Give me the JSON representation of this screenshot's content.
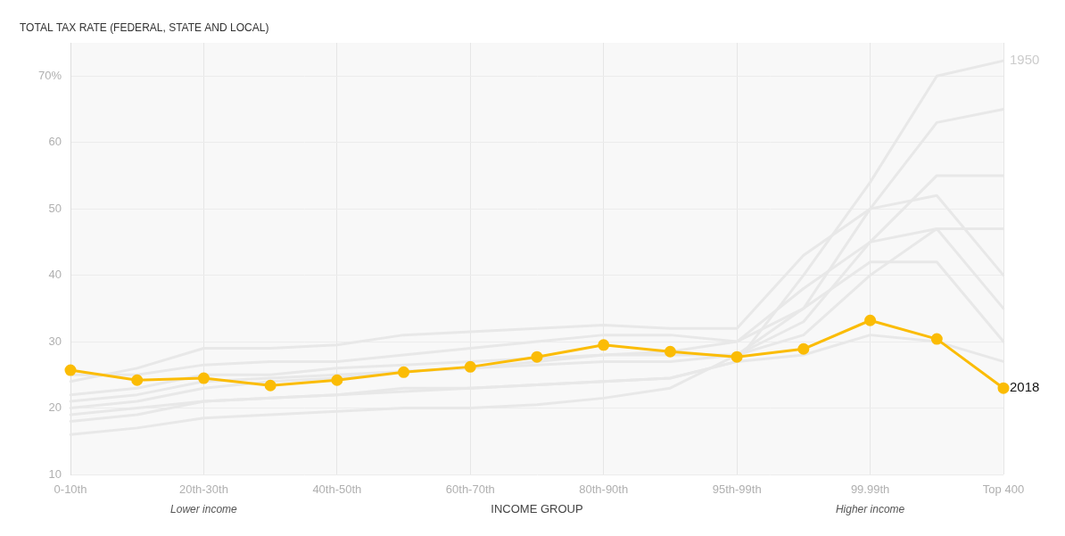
{
  "chart_data": {
    "type": "line",
    "title": "TOTAL TAX RATE (FEDERAL, STATE AND LOCAL)",
    "x_label": "INCOME GROUP",
    "annotations": [
      {
        "text": "Lower income",
        "category": "20th-30th"
      },
      {
        "text": "Higher income",
        "category": "99.99th"
      }
    ],
    "categories": [
      "0-10th",
      null,
      "20th-30th",
      null,
      "40th-50th",
      null,
      "60th-70th",
      null,
      "80th-90th",
      null,
      "95th-99th",
      null,
      "99.99th",
      null,
      "Top 400"
    ],
    "series": [
      {
        "color": "#e8e8e8",
        "values": [
          22,
          23,
          25,
          25,
          26,
          26.5,
          27,
          27.5,
          28,
          28,
          28,
          35,
          50,
          63,
          65
        ]
      },
      {
        "color": "#e8e8e8",
        "values": [
          20,
          21,
          23,
          24,
          24.5,
          25.5,
          26,
          26.5,
          27,
          27,
          28,
          33,
          45,
          55,
          55
        ]
      },
      {
        "color": "#e8e8e8",
        "values": [
          16,
          17,
          18.5,
          19,
          19.5,
          20,
          20,
          20.5,
          21.5,
          23,
          28,
          31,
          40,
          47,
          47
        ]
      },
      {
        "color": "#e8e8e8",
        "values": [
          24,
          26,
          29,
          29,
          29.5,
          31,
          31.5,
          32,
          32.5,
          32,
          32,
          43,
          50,
          52,
          40
        ]
      },
      {
        "color": "#e8e8e8",
        "values": [
          25,
          25,
          26.5,
          27,
          27,
          28,
          29,
          30,
          31,
          31,
          30,
          35,
          42,
          42,
          30
        ]
      },
      {
        "color": "#e8e8e8",
        "values": [
          19,
          20,
          21,
          21.5,
          22,
          23,
          23,
          23.5,
          24,
          24.5,
          27,
          28,
          31,
          30,
          27
        ]
      },
      {
        "color": "#e8e8e8",
        "values": [
          21,
          22,
          24,
          24.5,
          25,
          25.5,
          26,
          27,
          28,
          28.5,
          30,
          38,
          45,
          47,
          35
        ]
      },
      {
        "name": "1950",
        "color": "#e8e8e8",
        "values": [
          18,
          19,
          21,
          21.5,
          22,
          22.5,
          23,
          23.5,
          24,
          24.5,
          27,
          40,
          54,
          70,
          72.3
        ]
      },
      {
        "name": "2018",
        "color": "#fbbc05",
        "marker": "circle",
        "values": [
          25.7,
          24.2,
          24.5,
          23.4,
          24.2,
          25.4,
          26.2,
          27.7,
          29.5,
          28.5,
          27.7,
          28.9,
          33.2,
          30.4,
          23.0
        ]
      }
    ],
    "ylim": [
      10,
      75
    ],
    "yticks": [
      10,
      20,
      30,
      40,
      50,
      60,
      {
        "value": 70,
        "label": "70%"
      }
    ],
    "grid": true
  }
}
